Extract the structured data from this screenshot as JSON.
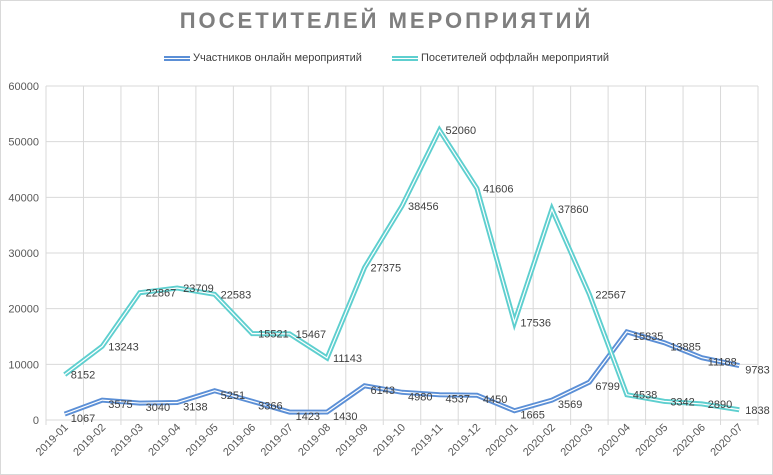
{
  "chart_data": {
    "type": "line",
    "title": "ПОСЕТИТЕЛЕЙ МЕРОПРИЯТИЙ",
    "xlabel": "",
    "ylabel": "",
    "ylim": [
      0,
      60000
    ],
    "yticks": [
      "0",
      "10000",
      "20000",
      "30000",
      "40000",
      "50000",
      "60000"
    ],
    "grid": true,
    "legend_position": "top",
    "categories": [
      "2019-01",
      "2019-02",
      "2019-03",
      "2019-04",
      "2019-05",
      "2019-06",
      "2019-07",
      "2019-08",
      "2019-09",
      "2019-10",
      "2019-11",
      "2019-12",
      "2020-01",
      "2020-02",
      "2020-03",
      "2020-04",
      "2020-05",
      "2020-06",
      "2020-07"
    ],
    "series": [
      {
        "name": "Участников онлайн мероприятий",
        "color": "#5b8fd6",
        "values": [
          1067,
          3575,
          3040,
          3138,
          5251,
          3366,
          1423,
          1430,
          6143,
          4980,
          4537,
          4450,
          1665,
          3569,
          6799,
          15835,
          13885,
          11188,
          9783
        ]
      },
      {
        "name": "Посетителей оффлайн мероприятий",
        "color": "#5ecfcf",
        "values": [
          8152,
          13243,
          22867,
          23709,
          22583,
          15521,
          15467,
          11143,
          27375,
          38456,
          52060,
          41606,
          17536,
          37860,
          22567,
          4538,
          3342,
          2890,
          1838
        ]
      }
    ]
  }
}
